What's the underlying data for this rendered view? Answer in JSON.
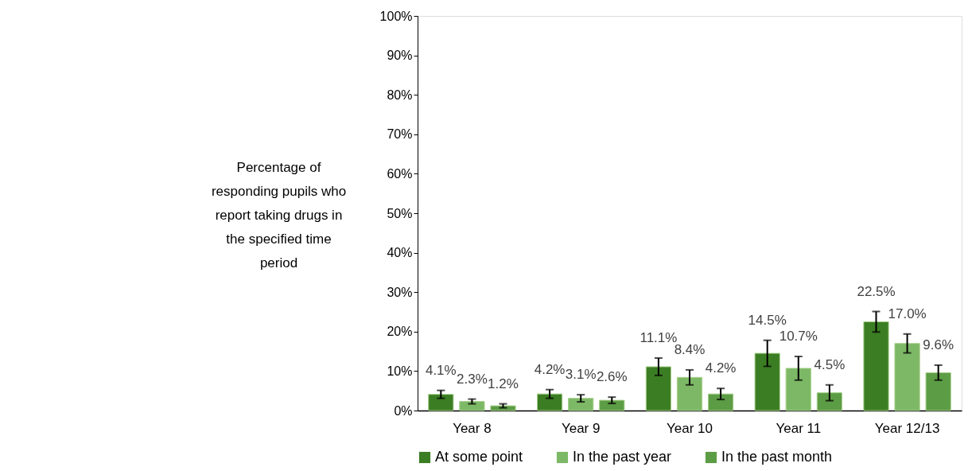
{
  "chart_data": {
    "type": "bar",
    "ylabel": "Percentage of\nresponding pupils who\nreport taking drugs in\nthe specified time\nperiod",
    "categories": [
      "Year 8",
      "Year 9",
      "Year 10",
      "Year 11",
      "Year 12/13"
    ],
    "series": [
      {
        "name": "At some point",
        "color": "#3b7d23",
        "values": [
          4.1,
          4.2,
          11.1,
          14.5,
          22.5
        ],
        "value_labels": [
          "4.1%",
          "4.2%",
          "11.1%",
          "14.5%",
          "22.5%"
        ],
        "errors": [
          1.0,
          1.1,
          2.2,
          3.3,
          2.6
        ]
      },
      {
        "name": "In the past year",
        "color": "#7db866",
        "values": [
          2.3,
          3.1,
          8.4,
          10.7,
          17.0
        ],
        "value_labels": [
          "2.3%",
          "3.1%",
          "8.4%",
          "10.7%",
          "17.0%"
        ],
        "errors": [
          0.6,
          0.9,
          1.9,
          3.0,
          2.4
        ]
      },
      {
        "name": "In the past month",
        "color": "#5c9c45",
        "values": [
          1.2,
          2.6,
          4.2,
          4.5,
          9.6
        ],
        "value_labels": [
          "1.2%",
          "2.6%",
          "4.2%",
          "4.5%",
          "9.6%"
        ],
        "errors": [
          0.5,
          0.8,
          1.4,
          2.0,
          1.9
        ]
      }
    ],
    "ylim": [
      0,
      100
    ],
    "yticks": [
      {
        "value": 0,
        "label": "0%"
      },
      {
        "value": 10,
        "label": "10%"
      },
      {
        "value": 20,
        "label": "20%"
      },
      {
        "value": 30,
        "label": "30%"
      },
      {
        "value": 40,
        "label": "40%"
      },
      {
        "value": 50,
        "label": "50%"
      },
      {
        "value": 60,
        "label": "60%"
      },
      {
        "value": 70,
        "label": "70%"
      },
      {
        "value": 80,
        "label": "80%"
      },
      {
        "value": 90,
        "label": "90%"
      },
      {
        "value": 100,
        "label": "100%"
      }
    ],
    "grid": false,
    "legend": "bottom"
  }
}
